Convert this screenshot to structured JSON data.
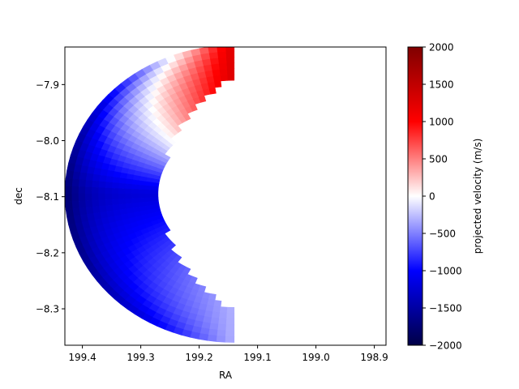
{
  "chart_data": {
    "type": "heatmap",
    "subtype": "sky-projected velocity map",
    "title": "",
    "xlabel": "RA",
    "ylabel": "dec",
    "xlim": [
      199.43,
      198.88
    ],
    "ylim": [
      -8.365,
      -7.833
    ],
    "x_ticks": [
      199.4,
      199.3,
      199.2,
      199.1,
      199.0,
      198.9
    ],
    "x_tick_labels": [
      "199.4",
      "199.3",
      "199.2",
      "199.1",
      "199.0",
      "198.9"
    ],
    "y_ticks": [
      -7.9,
      -8.0,
      -8.1,
      -8.2,
      -8.3
    ],
    "y_tick_labels": [
      "−7.9",
      "−8.0",
      "−8.1",
      "−8.2",
      "−8.3"
    ],
    "colormap": "seismic",
    "colormap_stops": [
      "#000046",
      "#0000ff",
      "#ffffff",
      "#ff0000",
      "#800000"
    ],
    "colorbar": {
      "label": "projected velocity (m/s)",
      "min": -2000,
      "max": 2000,
      "ticks": [
        2000,
        1500,
        1000,
        500,
        0,
        -500,
        -1000,
        -1500,
        -2000
      ],
      "tick_labels": [
        "2000",
        "1500",
        "1000",
        "500",
        "0",
        "−500",
        "−1000",
        "−1500",
        "−2000"
      ]
    },
    "crescent": {
      "outer_center": [
        199.14,
        -8.095
      ],
      "outer_radius_ra": 0.29,
      "outer_radius_dec": 0.265,
      "inner_center": [
        199.02,
        -8.095
      ],
      "inner_radius_ra": 0.245,
      "inner_radius_dec": 0.238,
      "velocity_top": 1300,
      "velocity_left": -1200,
      "velocity_bottom": -300,
      "dark_edge_velocity": -2000
    }
  }
}
